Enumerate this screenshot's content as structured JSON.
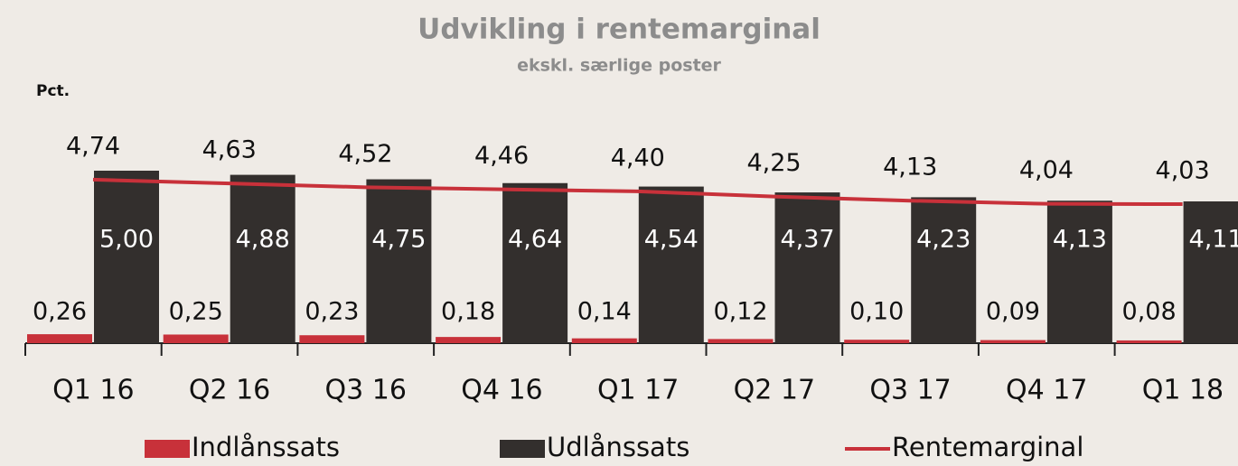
{
  "chart_data": {
    "type": "bar",
    "title": "Udvikling i rentemarginal",
    "subtitle": "ekskl. særlige poster",
    "y_label": "Pct.",
    "categories": [
      "Q1 16",
      "Q2 16",
      "Q3 16",
      "Q4 16",
      "Q1 17",
      "Q2 17",
      "Q3 17",
      "Q4 17",
      "Q1 18"
    ],
    "series": [
      {
        "name": "Indlånssats",
        "type": "bar",
        "color": "#c8313a",
        "values": [
          0.26,
          0.25,
          0.23,
          0.18,
          0.14,
          0.12,
          0.1,
          0.09,
          0.08
        ],
        "value_labels": [
          "0,26",
          "0,25",
          "0,23",
          "0,18",
          "0,14",
          "0,12",
          "0,10",
          "0,09",
          "0,08"
        ]
      },
      {
        "name": "Udlånssats",
        "type": "bar",
        "color": "#332f2d",
        "values": [
          5.0,
          4.88,
          4.75,
          4.64,
          4.54,
          4.37,
          4.23,
          4.13,
          4.11
        ],
        "value_labels": [
          "5,00",
          "4,88",
          "4,75",
          "4,64",
          "4,54",
          "4,37",
          "4,23",
          "4,13",
          "4,11"
        ]
      },
      {
        "name": "Rentemarginal",
        "type": "line",
        "color": "#c8313a",
        "values": [
          4.74,
          4.63,
          4.52,
          4.46,
          4.4,
          4.25,
          4.13,
          4.04,
          4.03
        ],
        "value_labels": [
          "4,74",
          "4,63",
          "4,52",
          "4,46",
          "4,40",
          "4,25",
          "4,13",
          "4,04",
          "4,03"
        ]
      }
    ],
    "ylim": [
      0,
      5
    ]
  }
}
